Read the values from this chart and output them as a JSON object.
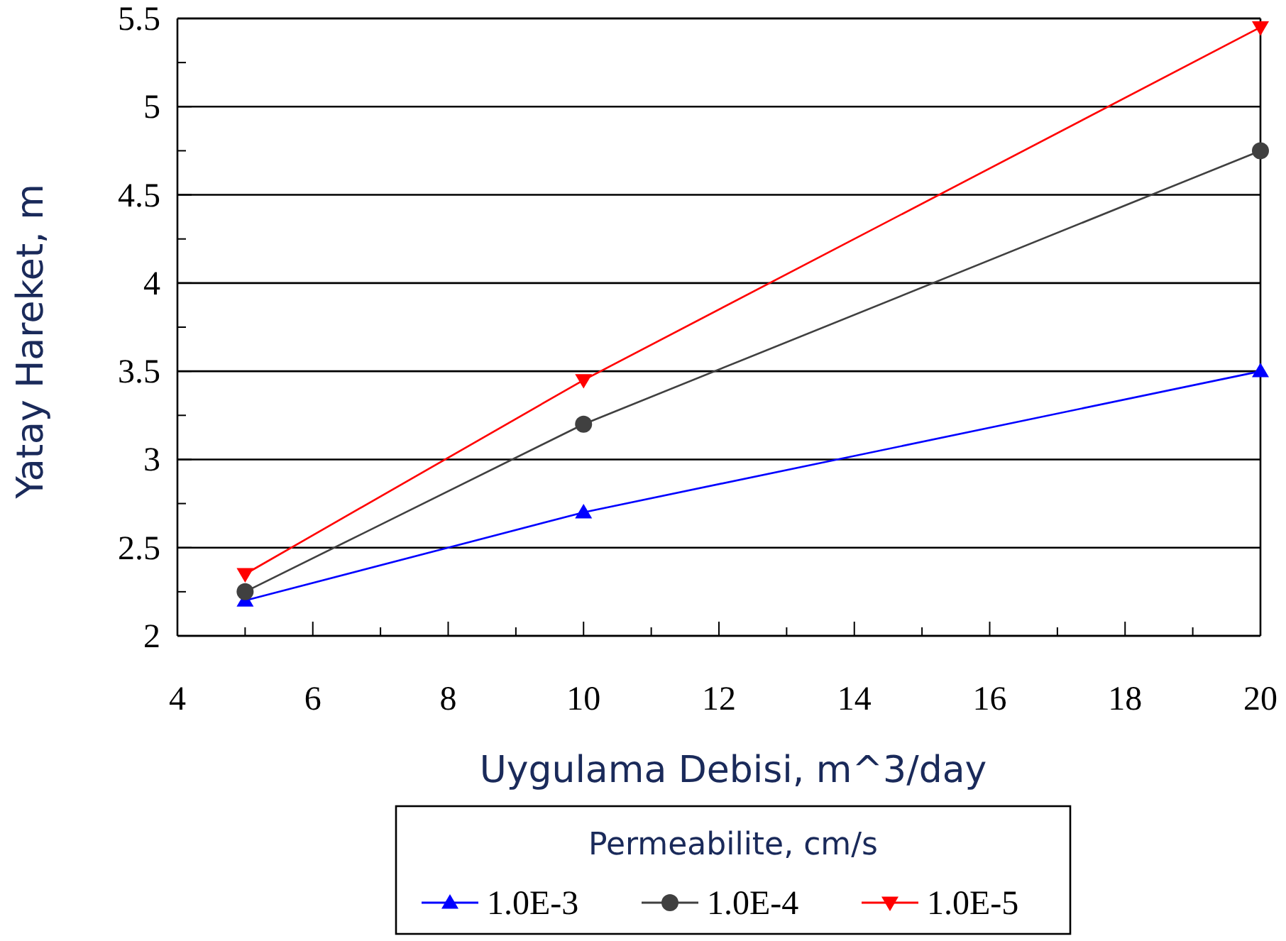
{
  "chart_data": {
    "type": "line",
    "xlabel": "Uygulama Debisi, m^3/day",
    "ylabel": "Yatay Hareket, m",
    "legend_title": "Permeabilite, cm/s",
    "x": [
      5,
      10,
      20
    ],
    "series": [
      {
        "name": "1.0E-3",
        "color": "#0000ff",
        "marker": "triangle",
        "values": [
          2.2,
          2.7,
          3.5
        ]
      },
      {
        "name": "1.0E-4",
        "color": "#404040",
        "marker": "circle",
        "values": [
          2.25,
          3.2,
          4.75
        ]
      },
      {
        "name": "1.0E-5",
        "color": "#ff0000",
        "marker": "triangle-down",
        "values": [
          2.35,
          3.45,
          5.45
        ]
      }
    ],
    "xlim": [
      4,
      20
    ],
    "xticks": [
      4,
      {
        "value": 5,
        "label": null
      },
      6,
      {
        "value": 7,
        "label": null
      },
      8,
      {
        "value": 9,
        "label": null
      },
      10,
      {
        "value": 11,
        "label": null
      },
      12,
      {
        "value": 13,
        "label": null
      },
      14,
      {
        "value": 15,
        "label": null
      },
      16,
      {
        "value": 17,
        "label": null
      },
      18,
      {
        "value": 19,
        "label": null
      },
      20
    ],
    "ylim": [
      2,
      5.5
    ],
    "yticks": [
      2,
      {
        "value": 2.25,
        "label": null
      },
      2.5,
      {
        "value": 2.75,
        "label": null
      },
      3,
      {
        "value": 3.25,
        "label": null
      },
      3.5,
      {
        "value": 3.75,
        "label": null
      },
      4,
      {
        "value": 4.25,
        "label": null
      },
      4.5,
      {
        "value": 4.75,
        "label": null
      },
      5,
      {
        "value": 5.25,
        "label": null
      },
      5.5
    ],
    "grid": "y",
    "legend": "bottom",
    "line_style": "solid"
  }
}
